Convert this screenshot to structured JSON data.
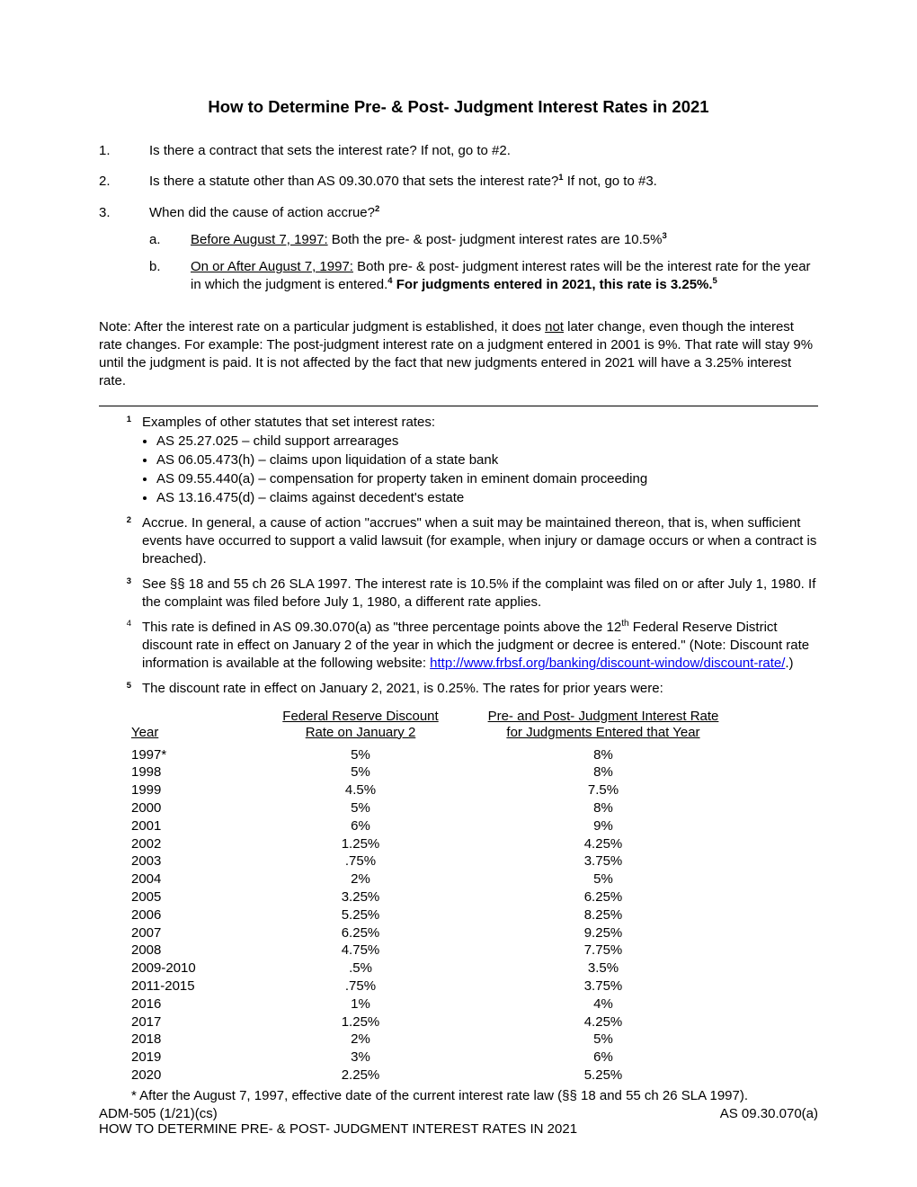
{
  "title": "How to Determine Pre- & Post- Judgment Interest Rates in 2021",
  "questions": {
    "q1": {
      "num": "1.",
      "text": "Is there a contract that sets the interest rate?  If not, go to #2."
    },
    "q2": {
      "num": "2.",
      "text_before": "Is there a statute other than AS 09.30.070 that sets the interest rate?",
      "fn": "1",
      "text_after": "   If not, go to #3."
    },
    "q3": {
      "num": "3.",
      "text": "When did the cause of action accrue?",
      "fn": "2"
    }
  },
  "subs": {
    "a": {
      "letter": "a.",
      "label": "Before August 7, 1997:",
      "text": "  Both the pre- & post- judgment interest rates are 10.5%",
      "fn": "3"
    },
    "b": {
      "letter": "b.",
      "label": "On or After August 7, 1997:",
      "text1": "  Both pre- & post- judgment interest rates will be the interest rate for the year in which the judgment is entered.",
      "fn1": "4",
      "bold1": "  For judgments entered in 2021, this rate is 3.25%.",
      "fn2": "5"
    }
  },
  "note": {
    "prefix": "Note:  After the interest rate on a particular judgment is established, it does ",
    "not_word": "not",
    "suffix": " later change, even though the interest rate changes.  For example: The post-judgment interest rate on a judgment entered in 2001 is 9%.  That rate will stay 9% until the judgment is paid.  It is not affected by the fact that new judgments entered in 2021 will have a 3.25% interest rate."
  },
  "footnotes": {
    "f1": {
      "marker": "1",
      "intro": "Examples of other statutes that set interest rates:",
      "bullets": [
        "AS 25.27.025 – child support arrearages",
        "AS 06.05.473(h) – claims upon liquidation of a state bank",
        "AS 09.55.440(a) – compensation for property taken in eminent domain proceeding",
        "AS 13.16.475(d) – claims against decedent's estate"
      ]
    },
    "f2": {
      "marker": "2",
      "text": "Accrue.  In general, a cause of action \"accrues\" when a suit may be maintained thereon, that is, when sufficient events have occurred to support a valid lawsuit (for example, when injury or damage occurs or when a contract is breached)."
    },
    "f3": {
      "marker": "3",
      "text": "See §§ 18 and 55 ch 26 SLA 1997.  The interest rate is 10.5% if the complaint was filed on or after July 1, 1980.  If the complaint was filed before July 1, 1980, a different rate applies."
    },
    "f4": {
      "marker": "4",
      "text_before": "This rate is defined in AS 09.30.070(a) as \"three percentage points above the 12",
      "th": "th",
      "text_mid": " Federal Reserve District discount rate in effect on January 2 of the year in which the judgment or decree is entered.\"  (Note:  Discount rate information is available at the following website: ",
      "link": "http://www.frbsf.org/banking/discount-window/discount-rate/",
      "text_after": ".) "
    },
    "f5": {
      "marker": "5",
      "text": "The discount rate in effect on January 2, 2021, is 0.25%.  The rates for prior years were:"
    }
  },
  "rate_table": {
    "headers": {
      "year": "Year",
      "discount": "Federal Reserve Discount\nRate on January 2",
      "judgment": "Pre- and Post- Judgment Interest Rate\nfor Judgments Entered that Year"
    },
    "rows": [
      {
        "year": "1997*",
        "discount": "5%",
        "judgment": "8%"
      },
      {
        "year": "1998",
        "discount": "5%",
        "judgment": "8%"
      },
      {
        "year": "1999",
        "discount": "4.5%",
        "judgment": "7.5%"
      },
      {
        "year": "2000",
        "discount": "5%",
        "judgment": "8%"
      },
      {
        "year": "2001",
        "discount": "6%",
        "judgment": "9%"
      },
      {
        "year": "2002",
        "discount": "1.25%",
        "judgment": "4.25%"
      },
      {
        "year": "2003",
        "discount": ".75%",
        "judgment": "3.75%"
      },
      {
        "year": "2004",
        "discount": "2%",
        "judgment": "5%"
      },
      {
        "year": "2005",
        "discount": "3.25%",
        "judgment": "6.25%"
      },
      {
        "year": "2006",
        "discount": "5.25%",
        "judgment": "8.25%"
      },
      {
        "year": "2007",
        "discount": "6.25%",
        "judgment": "9.25%"
      },
      {
        "year": "2008",
        "discount": "4.75%",
        "judgment": "7.75%"
      },
      {
        "year": "2009-2010",
        "discount": ".5%",
        "judgment": "3.5%"
      },
      {
        "year": "2011-2015",
        "discount": ".75%",
        "judgment": "3.75%"
      },
      {
        "year": "2016",
        "discount": "1%",
        "judgment": "4%"
      },
      {
        "year": "2017",
        "discount": "1.25%",
        "judgment": "4.25%"
      },
      {
        "year": "2018",
        "discount": "2%",
        "judgment": "5%"
      },
      {
        "year": "2019",
        "discount": "3%",
        "judgment": "6%"
      },
      {
        "year": "2020",
        "discount": "2.25%",
        "judgment": "5.25%"
      }
    ],
    "note": "* After the August 7, 1997, effective date of the current interest rate law (§§ 18 and 55 ch 26 SLA 1997)."
  },
  "footer": {
    "left_line1": "ADM-505 (1/21)(cs)",
    "left_line2": "HOW TO DETERMINE PRE- & POST- JUDGMENT INTEREST RATES IN 2021",
    "right": "AS 09.30.070(a)"
  }
}
